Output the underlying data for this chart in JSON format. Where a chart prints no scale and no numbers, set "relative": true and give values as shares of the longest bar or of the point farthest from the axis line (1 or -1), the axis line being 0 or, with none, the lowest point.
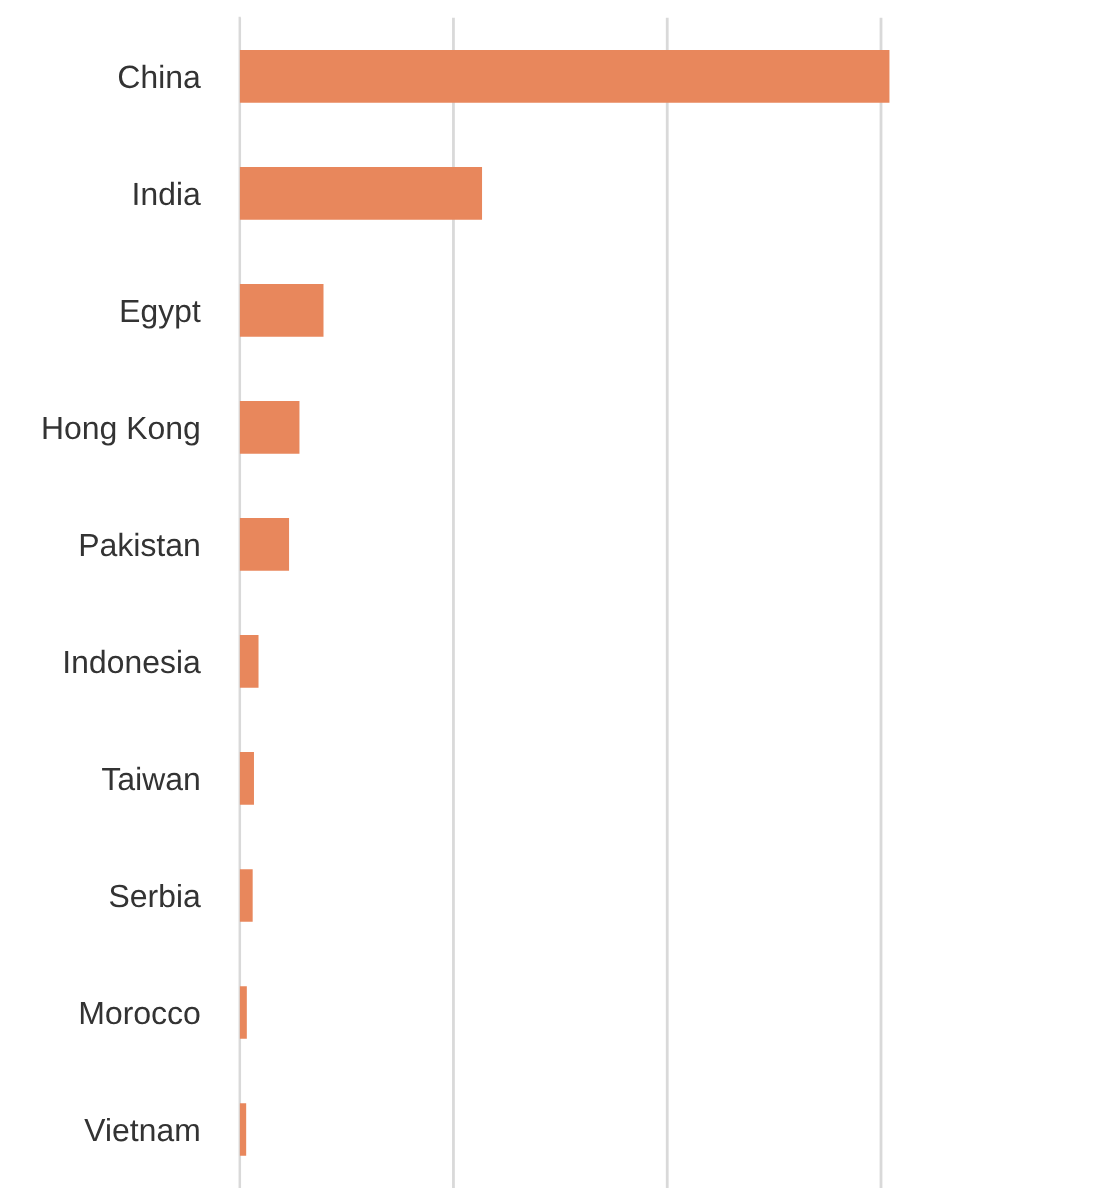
{
  "chart_data": {
    "type": "bar",
    "orientation": "horizontal",
    "relative": true,
    "categories": [
      "China",
      "India",
      "Egypt",
      "Hong Kong",
      "Pakistan",
      "Indonesia",
      "Taiwan",
      "Serbia",
      "Morocco",
      "Vietnam"
    ],
    "values": [
      1,
      0.373,
      0.129,
      0.092,
      0.076,
      0.029,
      0.022,
      0.02,
      0.011,
      0.01
    ],
    "color": "#e8875c",
    "grid": "x",
    "legend": false
  }
}
